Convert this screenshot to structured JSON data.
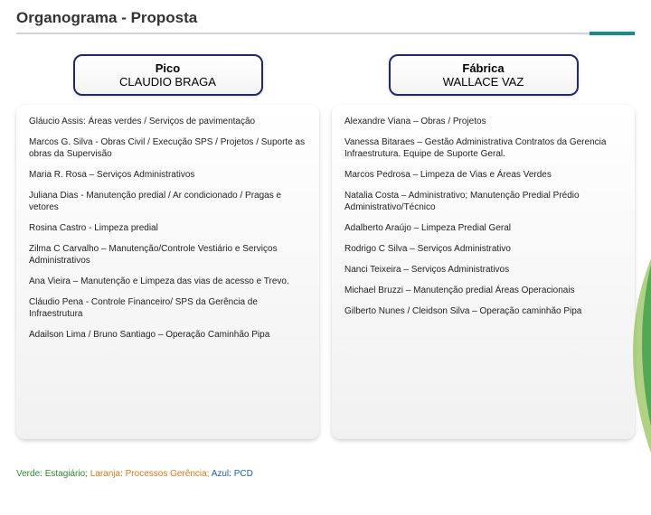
{
  "title": "Organograma - Proposta",
  "colors": {
    "left_border": "#1f2a66",
    "right_border": "#1f2a66",
    "divider": "#cfd4d8",
    "accent": "#1a8a8a",
    "swoosh_teal": "#0b8f8a",
    "swoosh_green": "#7ab62e"
  },
  "left": {
    "header_title": "Pico",
    "header_sub": "CLAUDIO BRAGA",
    "items": [
      "Gláucio Assis: Áreas verdes / Serviços de pavimentação",
      "Marcos G. Silva - Obras Civil / Execução SPS / Projetos / Suporte as obras da Supervisão",
      "Maria R. Rosa – Serviços Administrativos",
      "Juliana Dias - Manutenção predial / Ar condicionado / Pragas e vetores",
      "Rosina Castro - Limpeza predial",
      "Zilma C Carvalho – Manutenção/Controle Vestiário e Serviços Administrativos",
      "Ana Vieira – Manutenção e Limpeza das vias de acesso e Trevo.",
      "Cláudio Pena - Controle Financeiro/ SPS da Gerência de Infraestrutura",
      "Adailson Lima / Bruno Santiago – Operação Caminhão Pipa"
    ]
  },
  "right": {
    "header_title": "Fábrica",
    "header_sub": "WALLACE VAZ",
    "items": [
      "Alexandre Viana – Obras / Projetos",
      "Vanessa Bitaraes – Gestão Administrativa Contratos da Gerencia Infraestrutura. Equipe de Suporte Geral.",
      "Marcos Pedrosa – Limpeza de Vias e Áreas Verdes",
      "Natalia Costa – Administrativo; Manutenção Predial Prédio Administrativo/Técnico",
      "Adalberto Araújo – Limpeza Predial Geral",
      "Rodrigo C Silva – Serviços Administrativo",
      "Nanci Teixeira – Serviços Administrativos",
      "Michael Bruzzi – Manutenção predial Áreas Operacionais",
      "Gilberto Nunes / Cleidson Silva – Operação caminhão Pipa"
    ]
  },
  "legend": {
    "green": "Verde: Estagiário;",
    "orange": "Laranja: Processos Gerência;",
    "blue": "Azul: PCD"
  }
}
